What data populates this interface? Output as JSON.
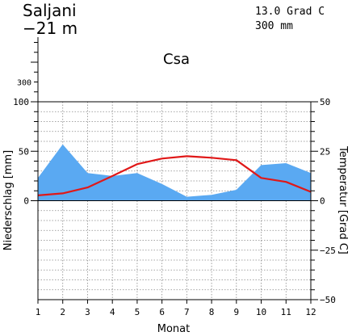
{
  "header": {
    "station": "Saljani",
    "elevation": "−21 m",
    "annual_temp": "13.0 Grad C",
    "annual_precip": "300 mm",
    "climate_class": "Csa"
  },
  "chart_data": {
    "type": "line",
    "categories": [
      1,
      2,
      3,
      4,
      5,
      6,
      7,
      8,
      9,
      10,
      11,
      12
    ],
    "xlabel": "Monat",
    "ylabel_left": "Niederschlag [mm]",
    "ylabel_right": "Temperatur [Grad C]",
    "precip_ticks": [
      0,
      50,
      100
    ],
    "precip_upper_tick": 300,
    "temp_ticks": [
      -50,
      -25,
      0,
      25,
      50
    ],
    "ylim_precip": [
      -100,
      100
    ],
    "ylim_temp": [
      -50,
      50
    ],
    "grid": true,
    "series": [
      {
        "key": "precipitation",
        "values": [
          23,
          57,
          28,
          25,
          28,
          17,
          4,
          6,
          11,
          36,
          38,
          28
        ],
        "color": "#5aa9f2"
      },
      {
        "key": "temperature",
        "values": [
          2.7,
          3.7,
          6.7,
          12.5,
          18.5,
          21.3,
          22.5,
          21.7,
          20.5,
          11.5,
          9.5,
          4.5
        ],
        "color": "#e01818"
      }
    ]
  }
}
